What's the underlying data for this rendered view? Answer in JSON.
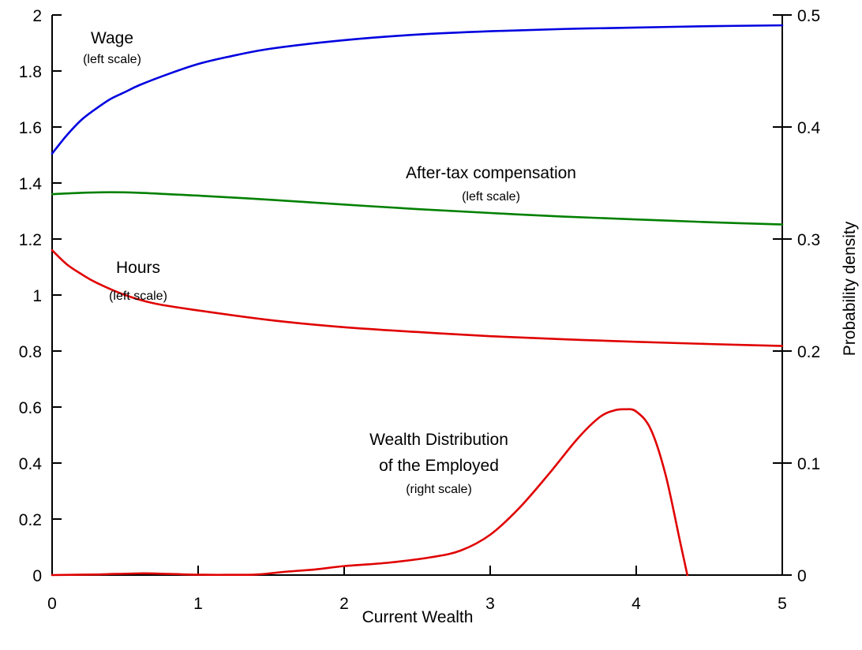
{
  "chart_data": {
    "type": "line",
    "xlabel": "Current Wealth",
    "ylabel_left": "",
    "ylabel_right": "Probability density",
    "xlim": [
      0,
      5
    ],
    "ylim_left": [
      0,
      2
    ],
    "ylim_right": [
      0,
      0.5
    ],
    "grid": false,
    "x_ticks": [
      "0",
      "1",
      "2",
      "3",
      "4",
      "5"
    ],
    "y_left_ticks": [
      "0",
      "0.2",
      "0.4",
      "0.6",
      "0.8",
      "1",
      "1.2",
      "1.4",
      "1.6",
      "1.8",
      "2"
    ],
    "y_right_ticks": [
      "0",
      "0.1",
      "0.2",
      "0.3",
      "0.4",
      "0.5"
    ],
    "series": [
      {
        "key": "wage",
        "axis": "left",
        "color": "#0000e0",
        "x": [
          0,
          0.1,
          0.2,
          0.3,
          0.4,
          0.5,
          0.6,
          0.8,
          1.0,
          1.2,
          1.5,
          2.0,
          2.5,
          3.0,
          3.5,
          4.0,
          4.5,
          5.0
        ],
        "y": [
          1.505,
          1.57,
          1.625,
          1.665,
          1.7,
          1.725,
          1.75,
          1.79,
          1.825,
          1.85,
          1.88,
          1.91,
          1.93,
          1.942,
          1.95,
          1.955,
          1.96,
          1.963
        ]
      },
      {
        "key": "after_tax_compensation",
        "axis": "left",
        "color": "#008000",
        "x": [
          0,
          0.2,
          0.4,
          0.6,
          0.8,
          1.0,
          1.5,
          2.0,
          2.5,
          3.0,
          3.5,
          4.0,
          4.5,
          5.0
        ],
        "y": [
          1.36,
          1.365,
          1.367,
          1.365,
          1.36,
          1.355,
          1.34,
          1.323,
          1.307,
          1.293,
          1.28,
          1.27,
          1.26,
          1.252
        ]
      },
      {
        "key": "hours",
        "axis": "left",
        "color": "#e00000",
        "x": [
          0,
          0.1,
          0.2,
          0.3,
          0.5,
          0.7,
          1.0,
          1.5,
          2.0,
          2.5,
          3.0,
          3.5,
          4.0,
          4.5,
          5.0
        ],
        "y": [
          1.16,
          1.11,
          1.075,
          1.045,
          1.0,
          0.97,
          0.945,
          0.91,
          0.885,
          0.868,
          0.853,
          0.842,
          0.833,
          0.825,
          0.818
        ]
      },
      {
        "key": "wealth_distribution",
        "axis": "right",
        "color": "#e00000",
        "x": [
          0,
          0.3,
          0.6,
          0.8,
          1.0,
          1.2,
          1.4,
          1.6,
          1.8,
          2.0,
          2.3,
          2.6,
          2.8,
          3.0,
          3.2,
          3.4,
          3.6,
          3.75,
          3.85,
          3.92,
          4.0,
          4.1,
          4.2,
          4.3,
          4.35
        ],
        "y": [
          0,
          0.0005,
          0.0015,
          0.001,
          0.0003,
          0.0002,
          0.0005,
          0.003,
          0.005,
          0.008,
          0.011,
          0.016,
          0.022,
          0.036,
          0.06,
          0.09,
          0.122,
          0.141,
          0.147,
          0.148,
          0.146,
          0.13,
          0.09,
          0.03,
          0
        ]
      }
    ],
    "annotations": [
      {
        "key": "wage",
        "main": "Wage",
        "sub": "(left scale)"
      },
      {
        "key": "after_tax",
        "main": "After-tax compensation",
        "sub": "(left scale)"
      },
      {
        "key": "hours",
        "main": "Hours",
        "sub": "(left scale)"
      },
      {
        "key": "wealth",
        "main": "Wealth Distribution",
        "main2": "of the Employed",
        "sub": "(right scale)"
      }
    ]
  }
}
